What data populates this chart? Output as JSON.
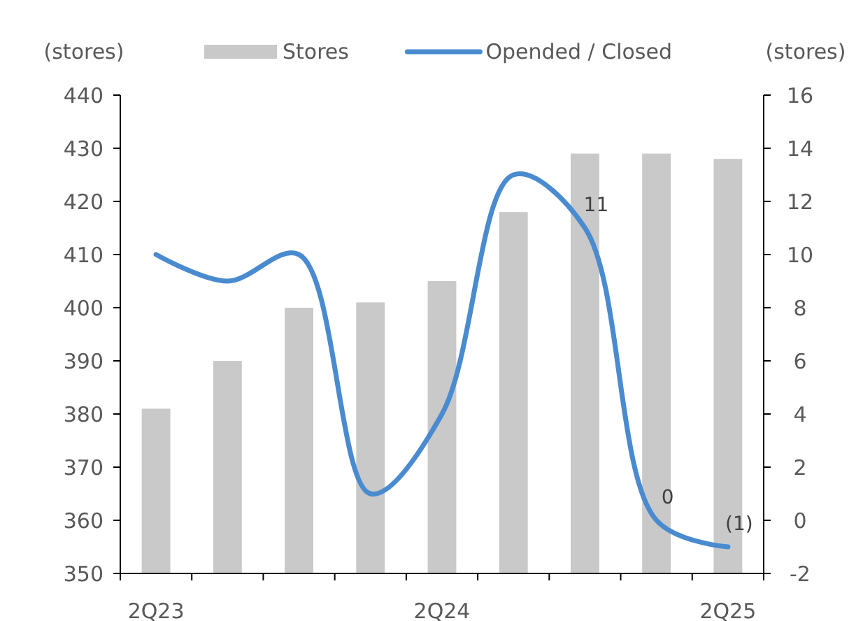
{
  "chart_data": {
    "type": "bar",
    "ylabel": "(stores)",
    "y2label": "(stores)",
    "categories": [
      "2Q23",
      null,
      null,
      null,
      "2Q24",
      null,
      null,
      null,
      "2Q25"
    ],
    "series": [
      {
        "name": "Stores",
        "color": "#c9c9c9",
        "values": [
          381,
          390,
          400,
          401,
          405,
          418,
          429,
          429,
          428
        ]
      },
      {
        "name": "Opended / Closed",
        "type": "line",
        "axis": "y2",
        "color": "#4a8bd0",
        "values": [
          10,
          9,
          10,
          1,
          4,
          13,
          11,
          0,
          -1
        ],
        "value_labels": [
          null,
          null,
          null,
          null,
          null,
          null,
          "11",
          "0",
          "(1)"
        ]
      }
    ],
    "ylim": [
      350,
      440
    ],
    "yticks": [
      350,
      360,
      370,
      380,
      390,
      400,
      410,
      420,
      430,
      440
    ],
    "y2lim": [
      -2,
      16
    ],
    "y2ticks": [
      -2,
      0,
      2,
      4,
      6,
      8,
      10,
      12,
      14,
      16
    ],
    "legend": "top",
    "grid": false,
    "marker": "none",
    "line_style": "solid"
  }
}
